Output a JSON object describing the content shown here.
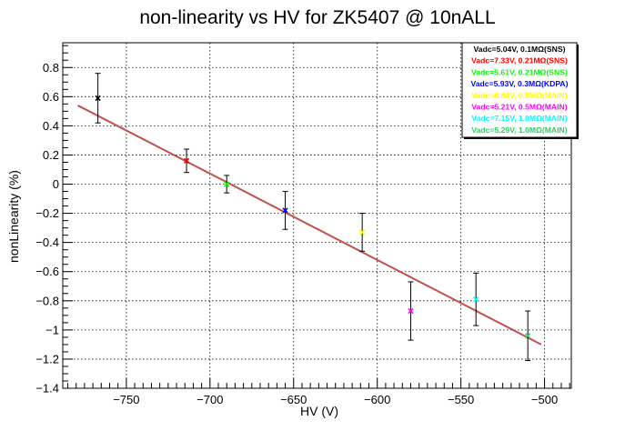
{
  "chart_data": {
    "type": "scatter",
    "title": "non-linearity vs HV for ZK5407 @ 10nALL",
    "xlabel": "HV (V)",
    "ylabel": "nonLinearity (%)",
    "xlim": [
      -788,
      -484
    ],
    "ylim": [
      -1.4,
      0.97
    ],
    "grid": true,
    "legend_placement": "top-right",
    "x_ticks": [
      -750,
      -700,
      -650,
      -600,
      -550,
      -500
    ],
    "x_tick_labels": [
      "−750",
      "−700",
      "−650",
      "−600",
      "−550",
      "−500"
    ],
    "y_ticks": [
      -1.4,
      -1.2,
      -1,
      -0.8,
      -0.6,
      -0.4,
      -0.2,
      0,
      0.2,
      0.4,
      0.6,
      0.8
    ],
    "y_tick_labels": [
      "−1.4",
      "−1.2",
      "−1",
      "−0.8",
      "−0.6",
      "−0.4",
      "−0.2",
      "0",
      "0.2",
      "0.4",
      "0.6",
      "0.8"
    ],
    "fit_line": {
      "x": [
        -779,
        -502
      ],
      "y": [
        0.54,
        -1.1
      ],
      "color": "#c0504d"
    },
    "series": [
      {
        "name": "Vadc=5.04V, 0.1MΩ(SNS)",
        "color": "#000000",
        "x": [
          -767
        ],
        "y": [
          0.59
        ],
        "yerr": [
          0.17
        ]
      },
      {
        "name": "Vadc=7.33V, 0.21MΩ(SNS)",
        "color": "#ff0000",
        "x": [
          -714
        ],
        "y": [
          0.16
        ],
        "yerr": [
          0.08
        ]
      },
      {
        "name": "Vadc=5.61V, 0.21MΩ(SNS)",
        "color": "#00ff00",
        "x": [
          -690
        ],
        "y": [
          0.0
        ],
        "yerr": [
          0.06
        ]
      },
      {
        "name": "Vadc=5.93V, 0.3MΩ(KDPA)",
        "color": "#0000ff",
        "x": [
          -655
        ],
        "y": [
          -0.18
        ],
        "yerr": [
          0.13
        ]
      },
      {
        "name": "Vadc=6.84V, 0.5MΩ(MAIN)",
        "color": "#ffff00",
        "x": [
          -609
        ],
        "y": [
          -0.33
        ],
        "yerr": [
          0.13
        ]
      },
      {
        "name": "Vadc=5.21V, 0.5MΩ(MAIN)",
        "color": "#ff00ff",
        "x": [
          -580
        ],
        "y": [
          -0.87
        ],
        "yerr": [
          0.2
        ]
      },
      {
        "name": "Vadc=7.15V, 1.0MΩ(MAIN)",
        "color": "#00ffff",
        "x": [
          -541
        ],
        "y": [
          -0.79
        ],
        "yerr": [
          0.18
        ]
      },
      {
        "name": "Vadc=5.29V, 1.0MΩ(MAIN)",
        "color": "#33cc66",
        "x": [
          -510
        ],
        "y": [
          -1.04
        ],
        "yerr": [
          0.17
        ]
      }
    ]
  }
}
